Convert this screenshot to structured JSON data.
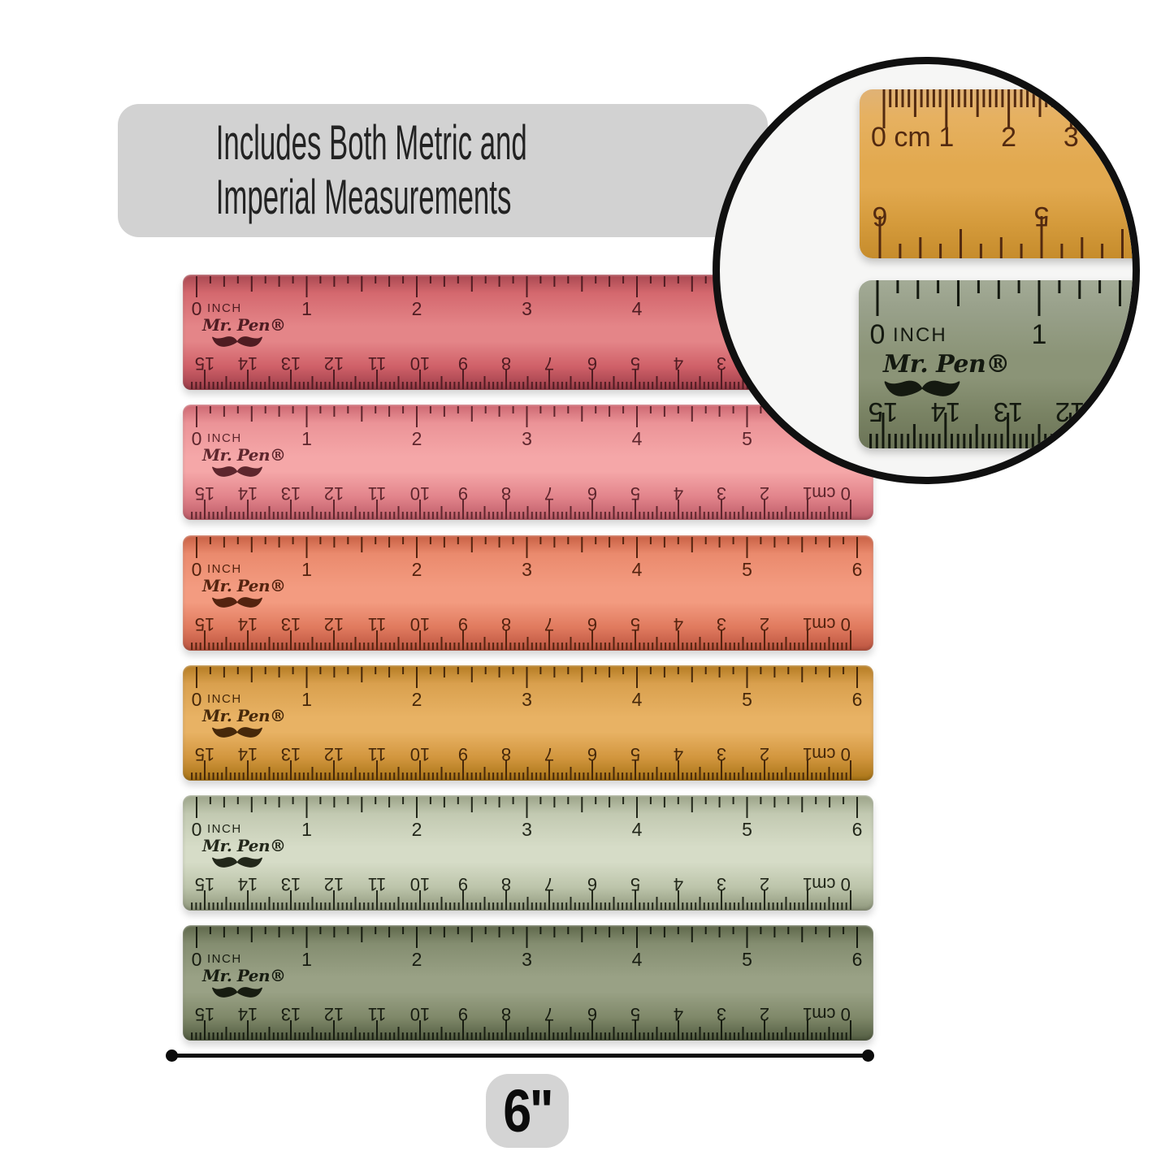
{
  "banner": {
    "line1": "Includes Both Metric and",
    "line2": "Imperial Measurements"
  },
  "brand": "Mr. Pen®",
  "scale": {
    "inch_zero": "0",
    "inch_unit": "INCH",
    "inch_numbers": [
      "1",
      "2",
      "3",
      "4",
      "5",
      "6"
    ],
    "cm_numbers": [
      "15",
      "14",
      "13",
      "12",
      "11",
      "10",
      "9",
      "8",
      "7",
      "6",
      "5",
      "4",
      "3",
      "2",
      "1"
    ],
    "cm_zero_label": "0 cm"
  },
  "rulers": [
    {
      "name": "red-ruler",
      "colors": {
        "c1": "#a84750",
        "c2": "#d4686e",
        "c3": "#e48588",
        "c4": "#cf6068",
        "c5": "#9c3d49",
        "tick": "#4f1c22"
      }
    },
    {
      "name": "pink-ruler",
      "colors": {
        "c1": "#cc6670",
        "c2": "#eb9397",
        "c3": "#f5a7a8",
        "c4": "#e2848b",
        "c5": "#bd5c68",
        "tick": "#5e262d"
      }
    },
    {
      "name": "coral-ruler",
      "colors": {
        "c1": "#c75f43",
        "c2": "#ea8a6d",
        "c3": "#f39b80",
        "c4": "#e07a5e",
        "c5": "#bb5440",
        "tick": "#54230f"
      }
    },
    {
      "name": "amber-ruler",
      "colors": {
        "c1": "#b47b22",
        "c2": "#d9a04e",
        "c3": "#e8b264",
        "c4": "#d2963e",
        "c5": "#a87416",
        "tick": "#46280a"
      }
    },
    {
      "name": "sage-ruler",
      "colors": {
        "c1": "#9aa287",
        "c2": "#c2c9b1",
        "c3": "#d6dcc7",
        "c4": "#bcc4aa",
        "c5": "#8f977c",
        "tick": "#22271a"
      }
    },
    {
      "name": "olive-ruler",
      "colors": {
        "c1": "#5e674a",
        "c2": "#848d70",
        "c3": "#99a185",
        "c4": "#7f8869",
        "c5": "#525c41",
        "tick": "#171c11"
      }
    }
  ],
  "inset_circle": {
    "metric_crop": {
      "cm_zero_label": "0 cm",
      "cm_numbers": [
        "1",
        "2",
        "3"
      ],
      "flipped_inch_numbers": [
        "6",
        "5"
      ],
      "colors": {
        "c1": "#e0b276",
        "c2": "#e6b161",
        "c3": "#e2a94f",
        "c4": "#d49a3b",
        "c5": "#c68c2c",
        "tick": "#532a10"
      }
    },
    "imperial_crop": {
      "inch_zero": "0",
      "inch_unit": "INCH",
      "inch_numbers": [
        "1"
      ],
      "brand": "Mr. Pen®",
      "flipped_cm_numbers": [
        "15",
        "14",
        "13",
        "12"
      ],
      "colors": {
        "c1": "#a3ab96",
        "c2": "#99a18b",
        "c3": "#8b9477",
        "c4": "#798263",
        "c5": "#6b7457",
        "tick": "#141910"
      }
    }
  },
  "dimension_label": "6\""
}
